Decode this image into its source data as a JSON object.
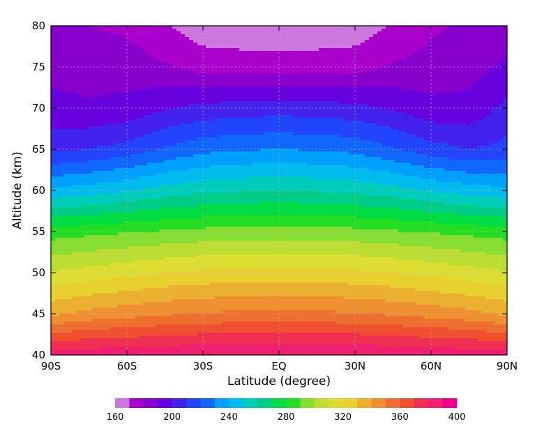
{
  "chart_data": {
    "type": "heatmap",
    "subtype": "filled-contour",
    "xlabel": "Latitude (degree)",
    "ylabel": "Altitude (km)",
    "x_ticks": [
      {
        "value": -90,
        "label": "90S"
      },
      {
        "value": -60,
        "label": "60S"
      },
      {
        "value": -30,
        "label": "30S"
      },
      {
        "value": 0,
        "label": "EQ"
      },
      {
        "value": 30,
        "label": "30N"
      },
      {
        "value": 60,
        "label": "60N"
      },
      {
        "value": 90,
        "label": "90N"
      }
    ],
    "y_ticks": [
      {
        "value": 40,
        "label": "40"
      },
      {
        "value": 45,
        "label": "45"
      },
      {
        "value": 50,
        "label": "50"
      },
      {
        "value": 55,
        "label": "55"
      },
      {
        "value": 60,
        "label": "60"
      },
      {
        "value": 65,
        "label": "65"
      },
      {
        "value": 70,
        "label": "70"
      },
      {
        "value": 75,
        "label": "75"
      },
      {
        "value": 80,
        "label": "80"
      }
    ],
    "xlim": [
      -90,
      90
    ],
    "ylim": [
      40,
      80
    ],
    "grid": "dotted",
    "colorbar": {
      "orientation": "horizontal",
      "placement": "bottom",
      "min": 160,
      "step": 10,
      "colors": [
        "#cc77dd",
        "#aa00cc",
        "#8800cc",
        "#6600dd",
        "#4422ee",
        "#2244ff",
        "#1166ff",
        "#00a0ff",
        "#00bbee",
        "#00ccbb",
        "#00cc88",
        "#00dd44",
        "#22dd22",
        "#88dd33",
        "#bbdd33",
        "#dddd33",
        "#e8d030",
        "#ebb030",
        "#ee9030",
        "#ee7030",
        "#f05030",
        "#f03050",
        "#f02070",
        "#f00090"
      ],
      "tick_labels": [
        {
          "value": 160,
          "label": "160"
        },
        {
          "value": 200,
          "label": "200"
        },
        {
          "value": 240,
          "label": "240"
        },
        {
          "value": 280,
          "label": "280"
        },
        {
          "value": 320,
          "label": "320"
        },
        {
          "value": 360,
          "label": "360"
        },
        {
          "value": 400,
          "label": "400"
        }
      ]
    },
    "series": [
      {
        "latitude": [
          -90,
          -75,
          -60,
          -45,
          -30,
          -15,
          0,
          15,
          30,
          45,
          60,
          75,
          90
        ],
        "altitude": 40,
        "values": [
          385,
          387,
          388,
          389,
          390,
          390,
          390,
          390,
          390,
          389,
          388,
          387,
          385
        ]
      },
      {
        "latitude": [
          -90,
          -75,
          -60,
          -45,
          -30,
          -15,
          0,
          15,
          30,
          45,
          60,
          75,
          90
        ],
        "altitude": 45,
        "values": [
          338,
          343,
          346,
          349,
          351,
          352,
          352,
          352,
          351,
          349,
          346,
          343,
          338
        ]
      },
      {
        "latitude": [
          -90,
          -75,
          -60,
          -45,
          -30,
          -15,
          0,
          15,
          30,
          45,
          60,
          75,
          90
        ],
        "altitude": 50,
        "values": [
          311,
          314,
          317,
          320,
          322,
          323,
          323,
          323,
          322,
          320,
          317,
          314,
          311
        ]
      },
      {
        "latitude": [
          -90,
          -75,
          -60,
          -45,
          -30,
          -15,
          0,
          15,
          30,
          45,
          60,
          75,
          90
        ],
        "altitude": 55,
        "values": [
          285,
          287,
          289,
          291,
          293,
          294,
          294,
          294,
          293,
          291,
          289,
          287,
          285
        ]
      },
      {
        "latitude": [
          -90,
          -75,
          -60,
          -45,
          -30,
          -15,
          0,
          15,
          30,
          45,
          60,
          75,
          90
        ],
        "altitude": 60,
        "values": [
          242,
          245,
          249,
          254,
          257,
          259,
          260,
          259,
          257,
          254,
          249,
          245,
          242
        ]
      },
      {
        "latitude": [
          -90,
          -75,
          -60,
          -45,
          -30,
          -15,
          0,
          15,
          30,
          45,
          60,
          75,
          90
        ],
        "altitude": 65,
        "values": [
          207,
          210,
          214,
          221,
          227,
          229,
          230,
          229,
          227,
          221,
          214,
          210,
          213
        ]
      },
      {
        "latitude": [
          -90,
          -75,
          -60,
          -45,
          -30,
          -15,
          0,
          15,
          30,
          45,
          60,
          75,
          90
        ],
        "altitude": 70,
        "values": [
          192,
          191,
          193,
          199,
          203,
          205,
          205,
          205,
          203,
          199,
          193,
          193,
          203
        ]
      },
      {
        "latitude": [
          -90,
          -75,
          -60,
          -45,
          -30,
          -15,
          0,
          15,
          30,
          45,
          60,
          75,
          90
        ],
        "altitude": 75,
        "values": [
          188,
          187,
          185,
          181,
          176,
          175,
          175,
          175,
          176,
          181,
          184,
          186,
          192
        ]
      },
      {
        "latitude": [
          -90,
          -75,
          -60,
          -45,
          -30,
          -15,
          0,
          15,
          30,
          45,
          60,
          75,
          90
        ],
        "altitude": 80,
        "values": [
          180,
          180,
          178,
          171,
          164,
          163,
          163,
          163,
          164,
          171,
          178,
          182,
          185
        ]
      }
    ]
  }
}
